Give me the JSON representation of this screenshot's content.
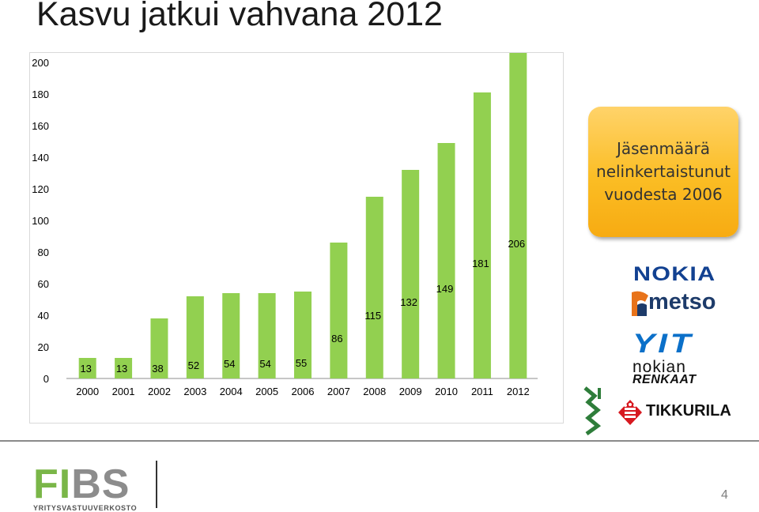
{
  "slide": {
    "title": "Kasvu jatkui vahvana 2012",
    "callout": "Jäsenmäärä\nnelinkertaistunut\nvuodesta 2006",
    "page_number": "4"
  },
  "logos": {
    "nokia": "NOKIA",
    "metso": "metso",
    "yit": "YIT",
    "nokian_line1": "nokian",
    "nokian_line2": "RENKAAT",
    "tikkurila": "TIKKURILA",
    "fibs": "FIBS",
    "fibs_subtitle": "YRITYSVASTUUVERKOSTO"
  },
  "colors": {
    "bar": "#92d050",
    "callout": "#fbbd24",
    "fibs_green": "#7ab648",
    "fibs_gray": "#8c8c8c"
  },
  "chart_data": {
    "type": "bar",
    "categories": [
      "2000",
      "2001",
      "2002",
      "2003",
      "2004",
      "2005",
      "2006",
      "2007",
      "2008",
      "2009",
      "2010",
      "2011",
      "2012"
    ],
    "values": [
      13,
      13,
      38,
      52,
      54,
      54,
      55,
      86,
      115,
      132,
      149,
      181,
      206
    ],
    "y_ticks": [
      0,
      20,
      40,
      60,
      80,
      100,
      120,
      140,
      160,
      180,
      200
    ],
    "ylim": [
      0,
      200
    ],
    "title": "",
    "xlabel": "",
    "ylabel": "",
    "grid": false
  }
}
